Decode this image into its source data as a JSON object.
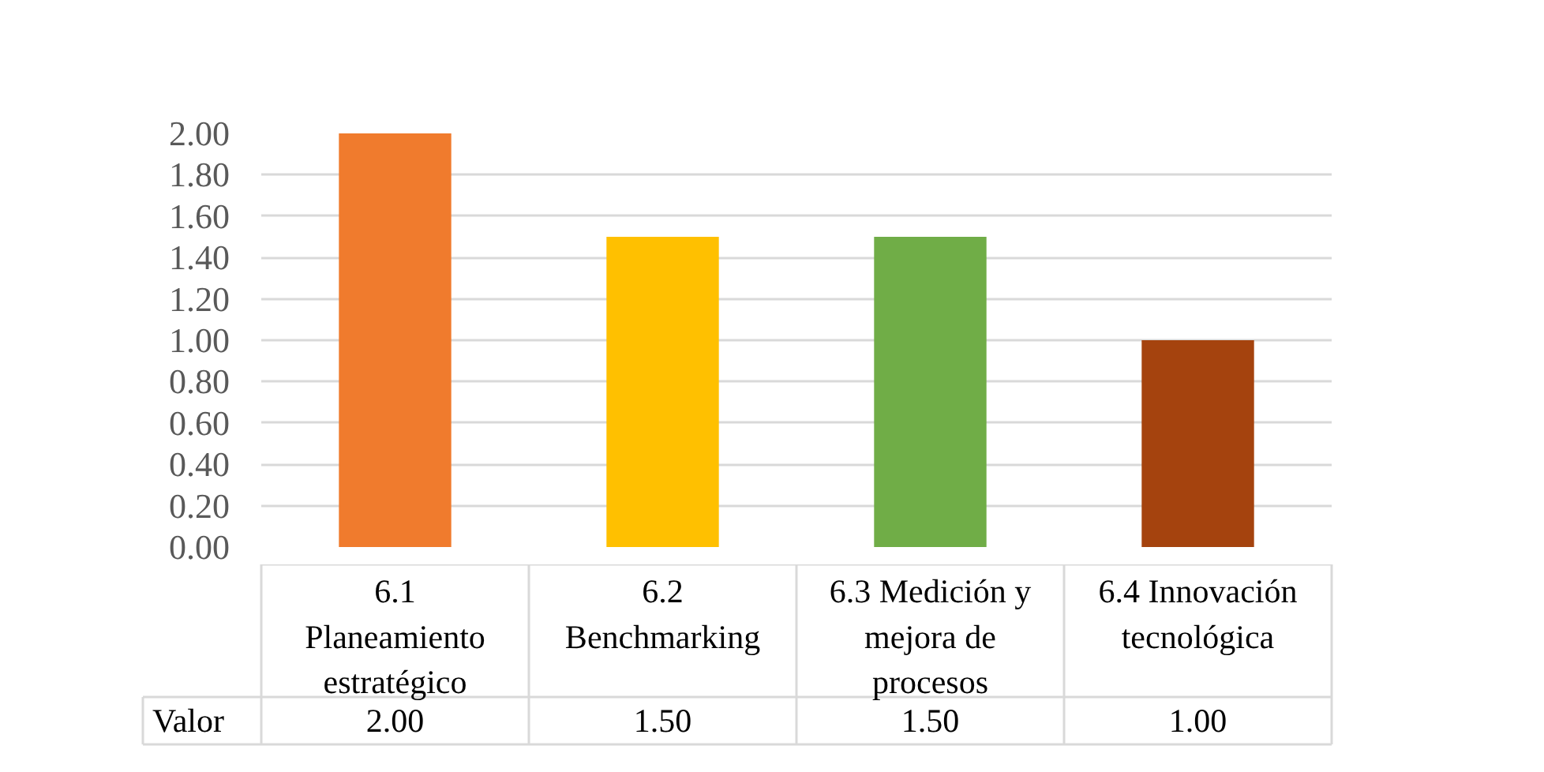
{
  "chart_data": {
    "type": "bar",
    "categories": [
      "6.1 Planeamiento estratégico",
      "6.2 Benchmarking",
      "6.3 Medición y mejora de procesos",
      "6.4 Innovación tecnológica"
    ],
    "series": [
      {
        "name": "Valor",
        "colors": [
          "#f07b2d",
          "#ffc000",
          "#70ad47",
          "#a5430e"
        ],
        "values": [
          2.0,
          1.5,
          1.5,
          1.0
        ],
        "value_labels": [
          "2.00",
          "1.50",
          "1.50",
          "1.00"
        ]
      }
    ],
    "ylim": [
      0,
      2
    ],
    "yticks": [
      {
        "value": 0,
        "label": "0.00"
      },
      {
        "value": 0.2,
        "label": "0.20"
      },
      {
        "value": 0.4,
        "label": "0.40"
      },
      {
        "value": 0.6,
        "label": "0.60"
      },
      {
        "value": 0.8,
        "label": "0.80"
      },
      {
        "value": 1,
        "label": "1.00"
      },
      {
        "value": 1.2,
        "label": "1.20"
      },
      {
        "value": 1.4,
        "label": "1.40"
      },
      {
        "value": 1.6,
        "label": "1.60"
      },
      {
        "value": 1.8,
        "label": "1.80"
      },
      {
        "value": 2,
        "label": "2.00"
      }
    ],
    "grid": "y",
    "legend": false
  }
}
